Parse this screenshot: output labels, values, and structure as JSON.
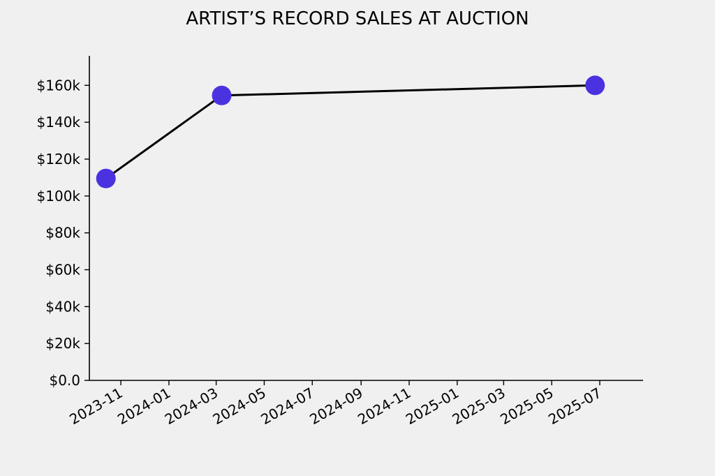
{
  "chart_data": {
    "type": "line",
    "title": "ARTIST’S RECORD SALES AT AUCTION",
    "xlabel": "",
    "ylabel": "",
    "x_scale": "date",
    "xlim": [
      "2023-09-22",
      "2025-08-25"
    ],
    "ylim": [
      0,
      176000
    ],
    "y_ticks": [
      0,
      20000,
      40000,
      60000,
      80000,
      100000,
      120000,
      140000,
      160000
    ],
    "y_tick_labels": [
      "$0.0",
      "$20k",
      "$40k",
      "$60k",
      "$80k",
      "$100k",
      "$120k",
      "$140k",
      "$160k"
    ],
    "x_ticks": [
      "2023-11-01",
      "2024-01-01",
      "2024-03-01",
      "2024-05-01",
      "2024-07-01",
      "2024-09-01",
      "2024-11-01",
      "2025-01-01",
      "2025-03-01",
      "2025-05-01",
      "2025-07-01"
    ],
    "x_tick_labels": [
      "2023-11",
      "2024-01",
      "2024-03",
      "2024-05",
      "2024-07",
      "2024-09",
      "2024-11",
      "2025-01",
      "2025-03",
      "2025-05",
      "2025-07"
    ],
    "grid": false,
    "series": [
      {
        "x": [
          "2023-10-13",
          "2024-03-08",
          "2025-06-25"
        ],
        "y": [
          109500,
          154500,
          160000
        ],
        "line_color": "#000000",
        "marker_color": "#4b32e0"
      }
    ]
  }
}
